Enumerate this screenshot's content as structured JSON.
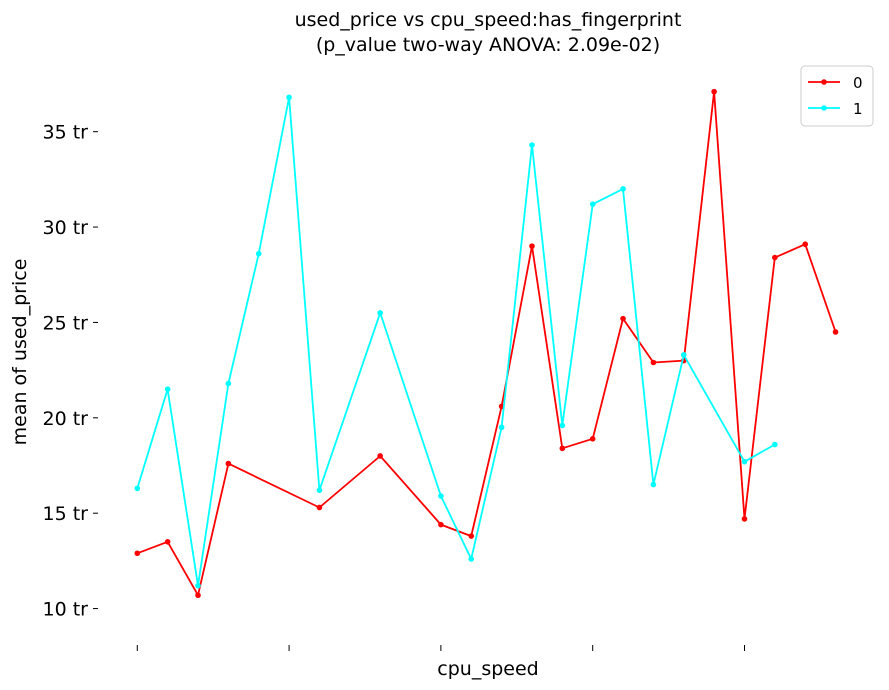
{
  "chart_data": {
    "type": "line",
    "title": "used_price vs cpu_speed:has_fingerprint",
    "subtitle": "(p_value two-way ANOVA: 2.09e-02)",
    "xlabel": "cpu_speed",
    "ylabel": "mean of used_price",
    "ylim": [
      8.3,
      38.6
    ],
    "xlim": [
      -0.8,
      24.2
    ],
    "yticks": [
      10,
      15,
      20,
      25,
      30,
      35
    ],
    "ytick_labels": [
      "10 tr",
      "15 tr",
      "20 tr",
      "25 tr",
      "30 tr",
      "35 tr"
    ],
    "xticks": [
      0,
      5,
      10,
      15,
      20,
      25
    ],
    "grid": false,
    "legend_position": "top-right",
    "series": [
      {
        "name": "0",
        "color": "#ff0000",
        "x": [
          0,
          1,
          2,
          3,
          6,
          8,
          10,
          11,
          12,
          13,
          14,
          15,
          16,
          17,
          18,
          19,
          20,
          21,
          22,
          23
        ],
        "y": [
          12.9,
          13.5,
          10.7,
          17.6,
          15.3,
          18.0,
          14.4,
          13.8,
          20.6,
          29.0,
          18.4,
          18.9,
          25.2,
          22.9,
          23.0,
          37.1,
          14.7,
          28.4,
          29.1,
          24.5
        ]
      },
      {
        "name": "1",
        "color": "#00ffff",
        "x": [
          0,
          1,
          2,
          3,
          4,
          5,
          6,
          8,
          10,
          11,
          12,
          13,
          14,
          15,
          16,
          17,
          18,
          20,
          21
        ],
        "y": [
          16.3,
          21.5,
          11.2,
          21.8,
          28.6,
          36.8,
          16.2,
          25.5,
          15.9,
          12.6,
          19.5,
          34.3,
          19.6,
          31.2,
          32.0,
          16.5,
          23.3,
          17.7,
          18.6
        ]
      }
    ]
  }
}
